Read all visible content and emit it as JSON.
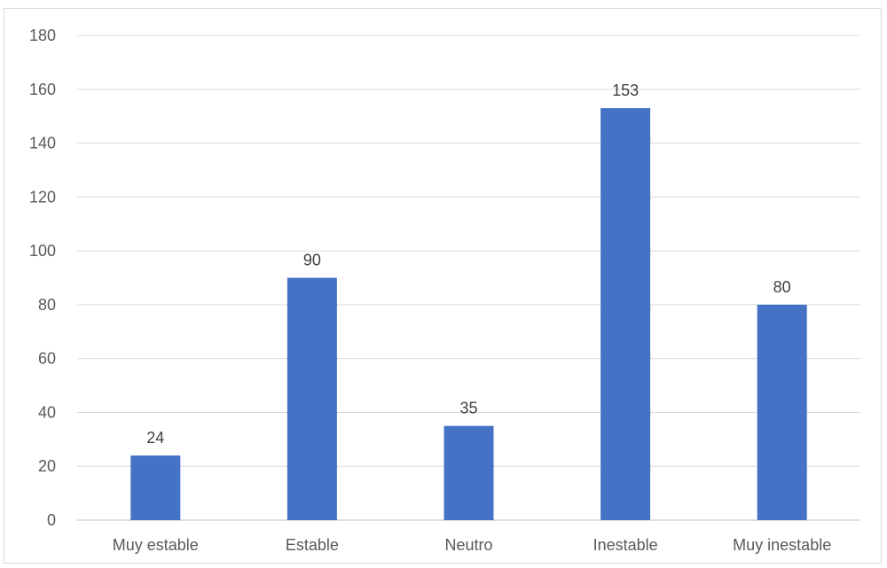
{
  "chart_data": {
    "type": "bar",
    "categories": [
      "Muy estable",
      "Estable",
      "Neutro",
      "Inestable",
      "Muy inestable"
    ],
    "values": [
      24,
      90,
      35,
      153,
      80
    ],
    "title": "",
    "xlabel": "",
    "ylabel": "",
    "ylim": [
      0,
      180
    ],
    "yticks": [
      0,
      20,
      40,
      60,
      80,
      100,
      120,
      140,
      160,
      180
    ],
    "grid": true,
    "legend": "none",
    "data_labels": true,
    "colors": {
      "bar": "#4472C4",
      "grid": "#d9d9d9",
      "axis": "#bfbfbf",
      "tick_text": "#595959",
      "label_text": "#404040"
    }
  }
}
